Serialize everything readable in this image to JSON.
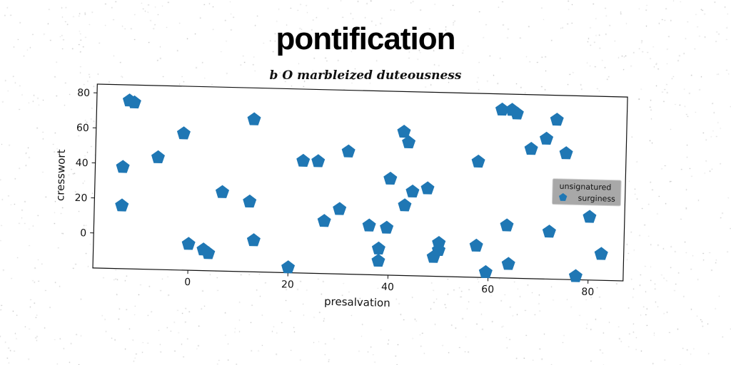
{
  "chart_data": {
    "type": "scatter",
    "title": "pontification",
    "subtitle": "b O marbleized duteousness",
    "xlabel": "presalvation",
    "ylabel": "cresswort",
    "xlim": [
      -19,
      87
    ],
    "ylim": [
      -20,
      85
    ],
    "xticks": [
      0,
      20,
      40,
      60,
      80
    ],
    "yticks": [
      0,
      20,
      40,
      60,
      80
    ],
    "grid": false,
    "legend": {
      "position": "right",
      "title": "unsignatured"
    },
    "colors": {
      "series": "#1f77b4",
      "legend_bg": "#999999"
    },
    "marker": "pentagon",
    "series": [
      {
        "name": "surginess",
        "points": [
          [
            -12.5,
            76
          ],
          [
            -11.5,
            75
          ],
          [
            -13.5,
            38
          ],
          [
            -13.5,
            16
          ],
          [
            -6.5,
            44
          ],
          [
            -1.5,
            58
          ],
          [
            0,
            -5
          ],
          [
            3,
            -8
          ],
          [
            4,
            -10
          ],
          [
            6.5,
            25
          ],
          [
            12,
            20
          ],
          [
            12.5,
            67
          ],
          [
            13,
            -2
          ],
          [
            20,
            -17
          ],
          [
            22.5,
            44
          ],
          [
            25.5,
            44
          ],
          [
            27,
            10
          ],
          [
            30,
            17
          ],
          [
            31.5,
            50
          ],
          [
            36,
            8
          ],
          [
            38,
            -5
          ],
          [
            38,
            -12
          ],
          [
            39.5,
            7
          ],
          [
            40,
            35
          ],
          [
            42.5,
            62
          ],
          [
            43,
            20
          ],
          [
            43.5,
            56
          ],
          [
            44.5,
            28
          ],
          [
            47.5,
            30
          ],
          [
            49,
            -9
          ],
          [
            50,
            -5
          ],
          [
            50,
            -1
          ],
          [
            57.5,
            -2
          ],
          [
            57.5,
            46
          ],
          [
            59.5,
            -17
          ],
          [
            62,
            76
          ],
          [
            63.5,
            10
          ],
          [
            64,
            76
          ],
          [
            64,
            -12
          ],
          [
            65,
            74
          ],
          [
            68,
            54
          ],
          [
            71,
            60
          ],
          [
            72,
            7
          ],
          [
            73,
            71
          ],
          [
            75,
            52
          ],
          [
            77.5,
            -18
          ],
          [
            80,
            16
          ],
          [
            82.5,
            -5
          ]
        ]
      }
    ]
  }
}
